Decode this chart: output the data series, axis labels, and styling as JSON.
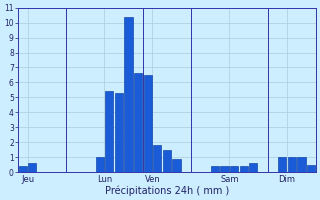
{
  "title": "Précipitations 24h ( mm )",
  "bar_color": "#1a5cd8",
  "bar_edge_color": "#003399",
  "background_color": "#cceeff",
  "grid_color": "#aaccdd",
  "axis_color": "#3333aa",
  "text_color": "#222266",
  "ylim": [
    0,
    11
  ],
  "yticks": [
    0,
    1,
    2,
    3,
    4,
    5,
    6,
    7,
    8,
    9,
    10,
    11
  ],
  "day_labels": [
    "Jeu",
    "Lun",
    "Ven",
    "Sam",
    "Dim"
  ],
  "day_tick_positions": [
    0.5,
    8.5,
    13.5,
    21.5,
    27.5
  ],
  "vline_positions": [
    4.5,
    12.5,
    17.5,
    25.5
  ],
  "values": [
    0.4,
    0.6,
    0.0,
    0.0,
    0.0,
    0.0,
    0.0,
    0.0,
    1.0,
    5.4,
    5.3,
    10.4,
    6.6,
    6.5,
    1.8,
    1.5,
    0.9,
    0.0,
    0.0,
    0.0,
    0.4,
    0.4,
    0.4,
    0.4,
    0.6,
    0.0,
    0.0,
    1.0,
    1.0,
    1.0,
    0.5
  ],
  "n_bars": 31,
  "xlim": [
    -0.5,
    30.5
  ]
}
